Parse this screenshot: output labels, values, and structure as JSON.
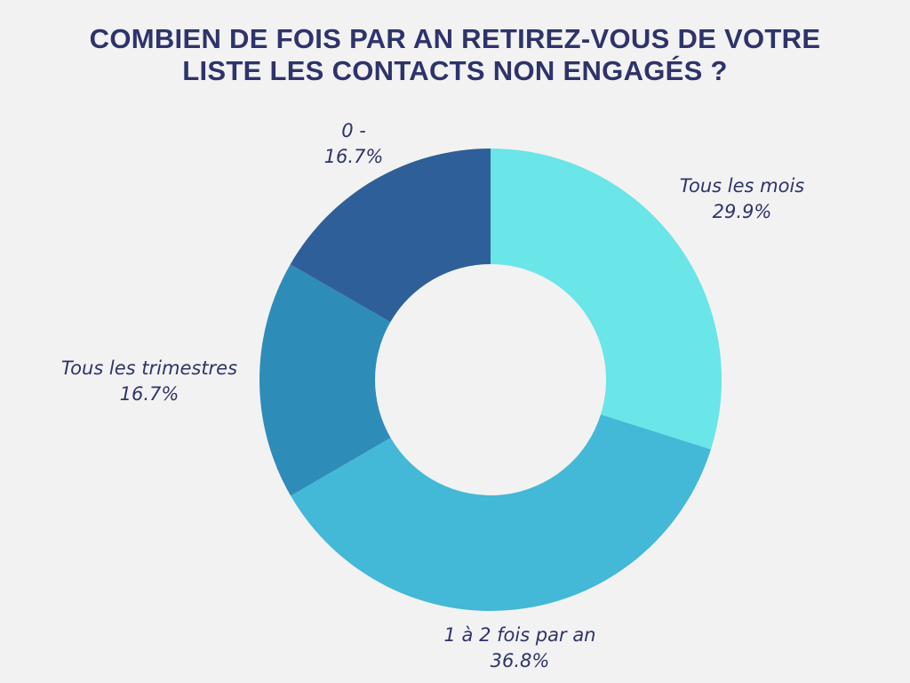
{
  "chart_data": {
    "type": "pie",
    "variant": "donut",
    "title_lines": [
      "COMBIEN DE FOIS PAR AN RETIREZ-VOUS DE VOTRE",
      "LISTE LES CONTACTS NON ENGAGÉS ?"
    ],
    "slices": [
      {
        "label": "Tous les mois",
        "value": 29.9,
        "display": "29.9%",
        "color": "#6ae5e8"
      },
      {
        "label": "1 à 2 fois par an",
        "value": 36.8,
        "display": "36.8%",
        "color": "#43b8d7"
      },
      {
        "label": "Tous les trimestres",
        "value": 16.7,
        "display": "16.7%",
        "color": "#2e8cb8"
      },
      {
        "label": "0 -",
        "value": 16.7,
        "display": "16.7%",
        "color": "#2e5f98"
      }
    ],
    "start_angle": "top",
    "direction": "clockwise"
  }
}
